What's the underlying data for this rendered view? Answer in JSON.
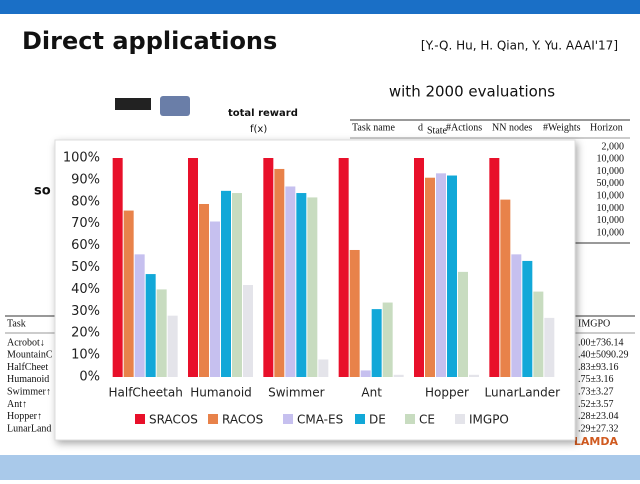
{
  "slide": {
    "title": "Direct applications",
    "citation": "[Y.-Q. Hu, H. Qian, Y. Yu. AAAI'17]",
    "subtitle": "with 2000 evaluations",
    "diagram": {
      "reward": "total reward",
      "fx": "f(x)",
      "left": "so"
    },
    "table_top": {
      "headers": [
        "Task name",
        "d",
        "State",
        "#Actions",
        "NN nodes",
        "#Weights",
        "Horizon"
      ],
      "horizon": [
        "2,000",
        "10,000",
        "10,000",
        "50,000",
        "10,000",
        "10,000",
        "10,000",
        "10,000"
      ]
    },
    "table_bottom": {
      "header_left": "Task",
      "header_right": "IMGPO",
      "rows": [
        "Acrobot↓",
        "MountainC",
        "HalfCheet",
        "Humanoid",
        "Swimmer↑",
        "Ant↑",
        "Hopper↑",
        "LunarLand"
      ],
      "values": [
        ".00±736.14",
        ".40±5090.29",
        ".83±93.16",
        ".75±3.16",
        ".73±3.27",
        ".52±3.57",
        ".28±23.04",
        ".29±27.32"
      ]
    }
  },
  "chart_data": {
    "type": "bar",
    "categories": [
      "HalfCheetah",
      "Humanoid",
      "Swimmer",
      "Ant",
      "Hopper",
      "LunarLander"
    ],
    "series": [
      {
        "name": "SRACOS",
        "color": "#e8102a",
        "values": [
          100,
          100,
          100,
          100,
          100,
          100
        ]
      },
      {
        "name": "RACOS",
        "color": "#e8824a",
        "values": [
          76,
          79,
          95,
          58,
          91,
          81
        ]
      },
      {
        "name": "CMA-ES",
        "color": "#c6c0ef",
        "values": [
          56,
          71,
          87,
          3,
          93,
          56
        ]
      },
      {
        "name": "DE",
        "color": "#12a8d8",
        "values": [
          47,
          85,
          84,
          31,
          92,
          53
        ]
      },
      {
        "name": "CE",
        "color": "#c8dcc0",
        "values": [
          40,
          84,
          82,
          34,
          48,
          39
        ]
      },
      {
        "name": "IMGPO",
        "color": "#e4e4ea",
        "values": [
          28,
          42,
          8,
          1,
          1,
          27
        ]
      }
    ],
    "ylim": [
      0,
      100
    ],
    "yticks": [
      {
        "value": 0,
        "label": "0%"
      },
      {
        "value": 10,
        "label": "10%"
      },
      {
        "value": 20,
        "label": "20%"
      },
      {
        "value": 30,
        "label": "30%"
      },
      {
        "value": 40,
        "label": "40%"
      },
      {
        "value": 50,
        "label": "50%"
      },
      {
        "value": 60,
        "label": "60%"
      },
      {
        "value": 70,
        "label": "70%"
      },
      {
        "value": 80,
        "label": "80%"
      },
      {
        "value": 90,
        "label": "90%"
      },
      {
        "value": 100,
        "label": "100%"
      }
    ]
  }
}
